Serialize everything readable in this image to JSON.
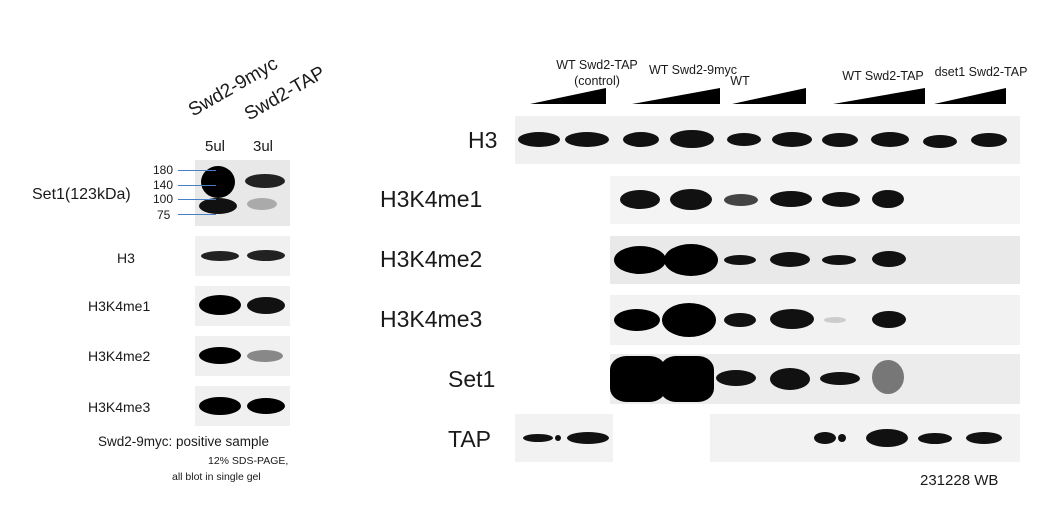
{
  "left_panel": {
    "sample_labels": [
      "Swd2-9myc",
      "Swd2-TAP"
    ],
    "volumes": [
      "5ul",
      "3ul"
    ],
    "markers": [
      "180",
      "140",
      "100",
      "75"
    ],
    "row_labels": [
      "Set1(123kDa)",
      "H3",
      "H3K4me1",
      "H3K4me2",
      "H3K4me3"
    ],
    "note_1": "Swd2-9myc: positive sample",
    "note_2": "12% SDS-PAGE,",
    "note_3": "all blot in single gel"
  },
  "right_panel": {
    "groups": [
      "WT Swd2-TAP",
      "(control)",
      "WT Swd2-9myc",
      "WT",
      "WT Swd2-TAP",
      "dset1 Swd2-TAP"
    ],
    "row_labels": [
      "H3",
      "H3K4me1",
      "H3K4me2",
      "H3K4me3",
      "Set1",
      "TAP"
    ],
    "footer": "231228 WB"
  }
}
